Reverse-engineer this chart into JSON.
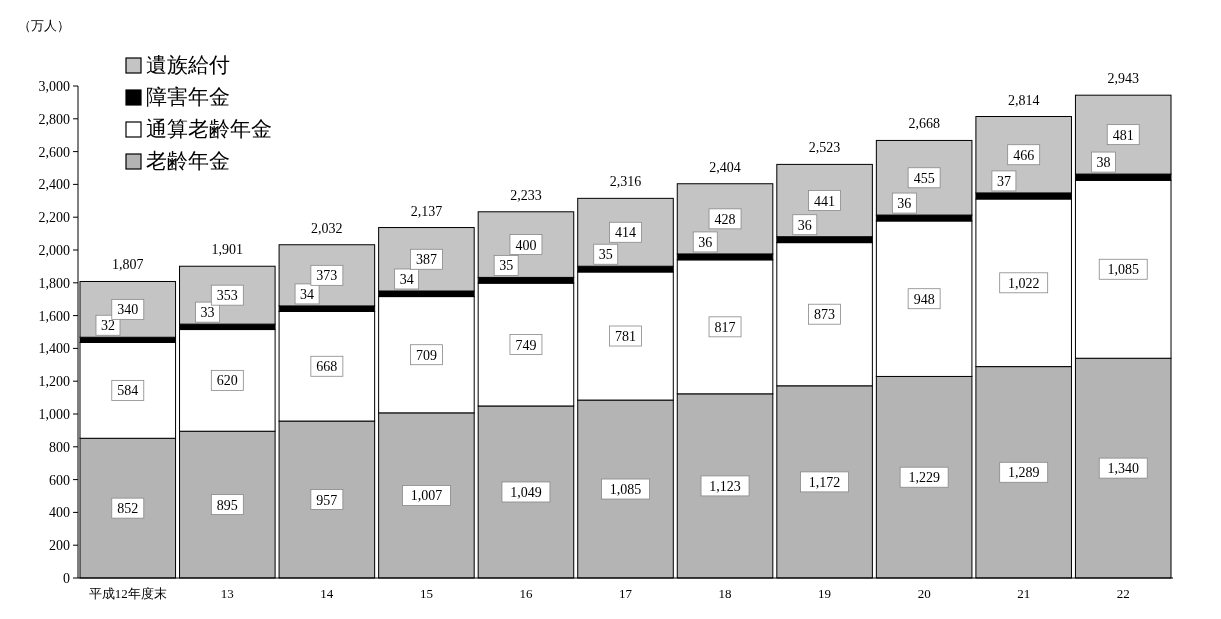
{
  "chart_data": {
    "type": "bar",
    "stacked": true,
    "ylabel": "（万人）",
    "categories": [
      "平成12年度末",
      "13",
      "14",
      "15",
      "16",
      "17",
      "18",
      "19",
      "20",
      "21",
      "22"
    ],
    "series": [
      {
        "name": "老齢年金",
        "color": "#b4b4b4",
        "values": [
          852,
          895,
          957,
          1007,
          1049,
          1085,
          1123,
          1172,
          1229,
          1289,
          1340
        ],
        "value_labels": [
          "852",
          "895",
          "957",
          "1,007",
          "1,049",
          "1,085",
          "1,123",
          "1,172",
          "1,229",
          "1,289",
          "1,340"
        ]
      },
      {
        "name": "通算老齢年金",
        "color": "#ffffff",
        "values": [
          584,
          620,
          668,
          709,
          749,
          781,
          817,
          873,
          948,
          1022,
          1085
        ],
        "value_labels": [
          "584",
          "620",
          "668",
          "709",
          "749",
          "781",
          "817",
          "873",
          "948",
          "1,022",
          "1,085"
        ]
      },
      {
        "name": "障害年金",
        "color": "#000000",
        "values": [
          32,
          33,
          34,
          34,
          35,
          35,
          36,
          36,
          36,
          37,
          38
        ],
        "value_labels": [
          "32",
          "33",
          "34",
          "34",
          "35",
          "35",
          "36",
          "36",
          "36",
          "37",
          "38"
        ]
      },
      {
        "name": "遺族給付",
        "color": "#c4c4c4",
        "values": [
          340,
          353,
          373,
          387,
          400,
          414,
          428,
          441,
          455,
          466,
          481
        ],
        "value_labels": [
          "340",
          "353",
          "373",
          "387",
          "400",
          "414",
          "428",
          "441",
          "455",
          "466",
          "481"
        ]
      }
    ],
    "totals": [
      "1,807",
      "1,901",
      "2,032",
      "2,137",
      "2,233",
      "2,316",
      "2,404",
      "2,523",
      "2,668",
      "2,814",
      "2,943"
    ],
    "legend": "top left",
    "grid": false,
    "ylim": [
      0,
      3000
    ],
    "yticks": [
      0,
      200,
      400,
      600,
      800,
      {
        "value": 1000,
        "label": "1,000"
      },
      {
        "value": 1200,
        "label": "1,200"
      },
      {
        "value": 1400,
        "label": "1,400"
      },
      {
        "value": 1600,
        "label": "1,600"
      },
      {
        "value": 1800,
        "label": "1,800"
      },
      {
        "value": 2000,
        "label": "2,000"
      },
      {
        "value": 2200,
        "label": "2,200"
      },
      {
        "value": 2400,
        "label": "2,400"
      },
      {
        "value": 2600,
        "label": "2,600"
      },
      {
        "value": 2800,
        "label": "2,800"
      },
      {
        "value": 3000,
        "label": "3,000"
      }
    ]
  }
}
